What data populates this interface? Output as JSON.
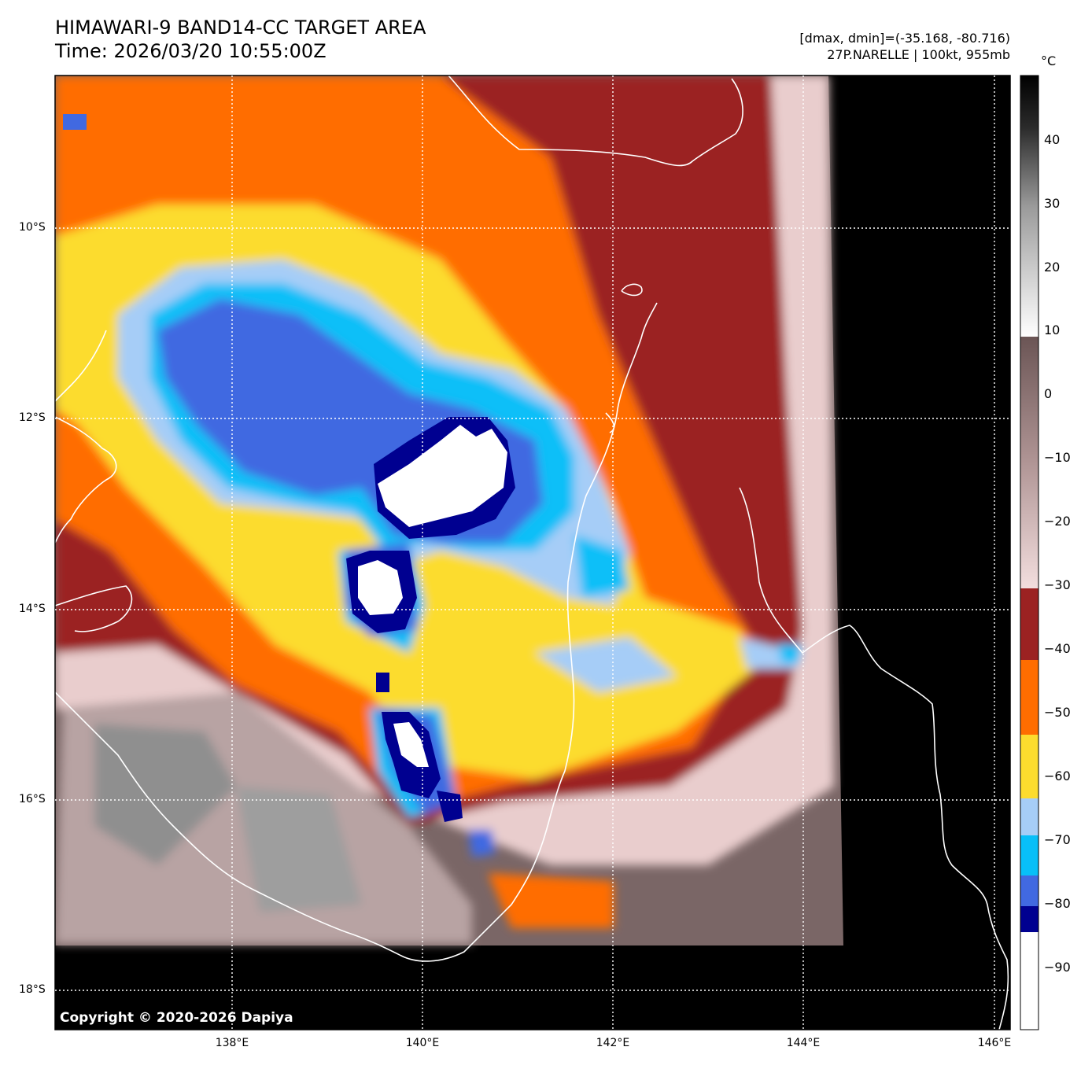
{
  "header": {
    "title_line1": "HIMAWARI-9 BAND14-CC TARGET AREA",
    "title_line2": "Time: 2026/03/20 10:55:00Z",
    "range_text": "[dmax, dmin]=(-35.168, -80.716)",
    "storm_text": "27P.NARELLE | 100kt, 955mb"
  },
  "map": {
    "lat_labels": [
      "10°S",
      "12°S",
      "14°S",
      "16°S",
      "18°S"
    ],
    "lon_labels": [
      "138°E",
      "140°E",
      "142°E",
      "144°E",
      "146°E"
    ],
    "copyright": "Copyright © 2020-2026 Dapiya"
  },
  "colorbar": {
    "unit": "°C",
    "ticks": [
      "40",
      "30",
      "20",
      "10",
      "0",
      "−10",
      "−20",
      "−30",
      "−40",
      "−50",
      "−60",
      "−70",
      "−80",
      "−90"
    ],
    "colors": {
      "warm_gray": "#6f5c5c",
      "pink": "#f2d7d7",
      "dark_red": "#9b2222",
      "orange": "#ff6d00",
      "yellow": "#fcdc2e",
      "light_blue": "#a6cdf7",
      "cyan": "#08bff8",
      "royal_blue": "#4169e1",
      "navy": "#000090",
      "white": "#ffffff",
      "black": "#000000"
    }
  }
}
